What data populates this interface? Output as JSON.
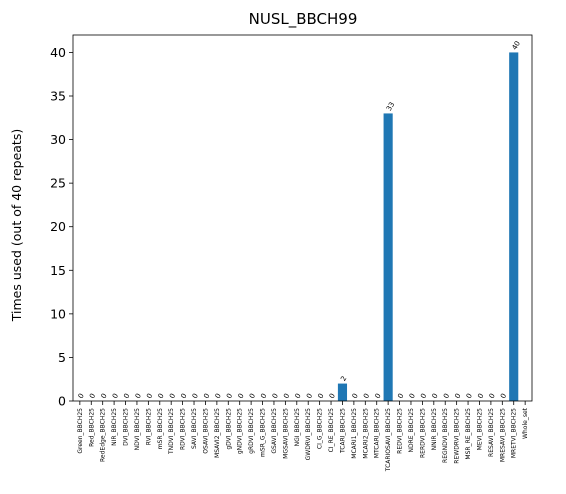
{
  "chart_data": {
    "type": "bar",
    "title": "NUSL_BBCH99",
    "xlabel": "",
    "ylabel": "Times used (out of 40 repeats)",
    "ylim": [
      0,
      42
    ],
    "yticks": [
      0,
      5,
      10,
      15,
      20,
      25,
      30,
      35,
      40
    ],
    "grid": false,
    "color": "#1f77b4",
    "categories": [
      "Green_BBCH25",
      "Red_BBCH25",
      "RedEdge_BBCH25",
      "NIR_BBCH25",
      "DVI_BBCH25",
      "NDVI_BBCH25",
      "RVI_BBCH25",
      "mSR_BBCH25",
      "TNDVI_BBCH25",
      "RDVI_BBCH25",
      "SAVI_BBCH25",
      "OSAVI_BBCH25",
      "MSAVI2_BBCH25",
      "gDVI_BBCH25",
      "gNDVI_BBCH25",
      "gRDVI_BBCH25",
      "mSR_G_BBCH25",
      "GSAVI_BBCH25",
      "MGSAVI_BBCH25",
      "NGI_BBCH25",
      "GWDRVI_BBCH25",
      "CI_G_BBCH25",
      "CI_RE_BBCH25",
      "TCARI_BBCH25",
      "MCARI1_BBCH25",
      "MCARI2_BBCH25",
      "MTCARI_BBCH25",
      "TCARIOSAVI_BBCH25",
      "REDVI_BBCH25",
      "NDRE_BBCH25",
      "RERDVI_BBCH25",
      "NNIR_BBCH25",
      "REGNDVI_BBCH25",
      "REWDRVI_BBCH25",
      "MSR_RE_BBCH25",
      "MEVI_BBCH25",
      "RESAVI_BBCH25",
      "MRESAVI_BBCH25",
      "MRETVI_BBCH25",
      "Whole_set"
    ],
    "values": [
      0,
      0,
      0,
      0,
      0,
      0,
      0,
      0,
      0,
      0,
      0,
      0,
      0,
      0,
      0,
      0,
      0,
      0,
      0,
      0,
      0,
      0,
      0,
      2,
      0,
      0,
      0,
      33,
      0,
      0,
      0,
      0,
      0,
      0,
      0,
      0,
      0,
      0,
      40,
      null
    ],
    "data_labels": [
      "0",
      "0",
      "0",
      "0",
      "0",
      "0",
      "0",
      "0",
      "0",
      "0",
      "0",
      "0",
      "0",
      "0",
      "0",
      "0",
      "0",
      "0",
      "0",
      "0",
      "0",
      "0",
      "0",
      "2",
      "0",
      "0",
      "0",
      "33",
      "0",
      "0",
      "0",
      "0",
      "0",
      "0",
      "0",
      "0",
      "0",
      "0",
      "40",
      ""
    ]
  }
}
